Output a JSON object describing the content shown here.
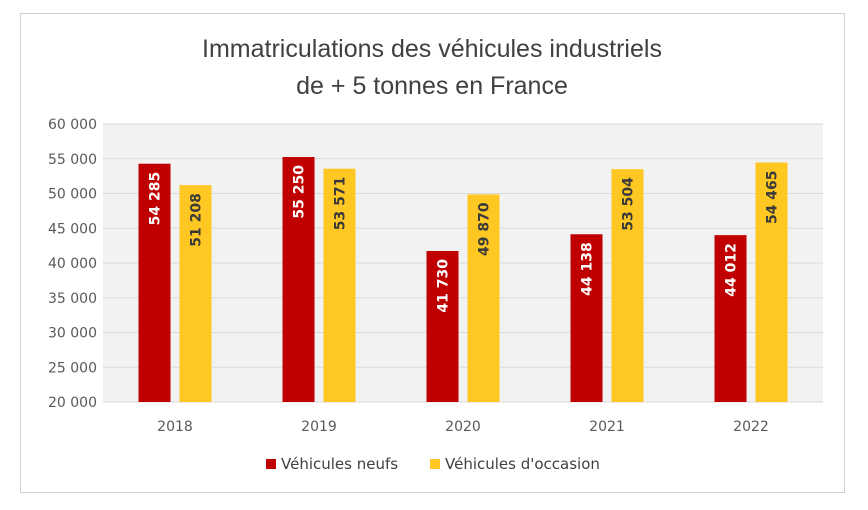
{
  "chart_data": {
    "type": "bar",
    "title_lines": [
      "Immatriculations des véhicules industriels",
      "de + 5 tonnes en France"
    ],
    "categories": [
      "2018",
      "2019",
      "2020",
      "2021",
      "2022"
    ],
    "series": [
      {
        "name": "Véhicules neufs",
        "color": "#C00000",
        "label_color": "#FFFFFF",
        "values": [
          54285,
          55250,
          41730,
          44138,
          44012
        ],
        "labels": [
          "54 285",
          "55 250",
          "41 730",
          "44 138",
          "44 012"
        ]
      },
      {
        "name": "Véhicules d'occasion",
        "color": "#FFC722",
        "label_color": "#3A3A3A",
        "values": [
          51208,
          53571,
          49870,
          53504,
          54465
        ],
        "labels": [
          "51 208",
          "53 571",
          "49 870",
          "53 504",
          "54 465"
        ]
      }
    ],
    "ylim": [
      20000,
      60000
    ],
    "yticks": [
      20000,
      25000,
      30000,
      35000,
      40000,
      45000,
      50000,
      55000,
      60000
    ],
    "ytick_labels": [
      "20 000",
      "25 000",
      "30 000",
      "35 000",
      "40 000",
      "45 000",
      "50 000",
      "55 000",
      "60 000"
    ],
    "grid": true,
    "plot_background": "#F2F2F2",
    "legend_position": "bottom",
    "xlabel": "",
    "ylabel": ""
  }
}
